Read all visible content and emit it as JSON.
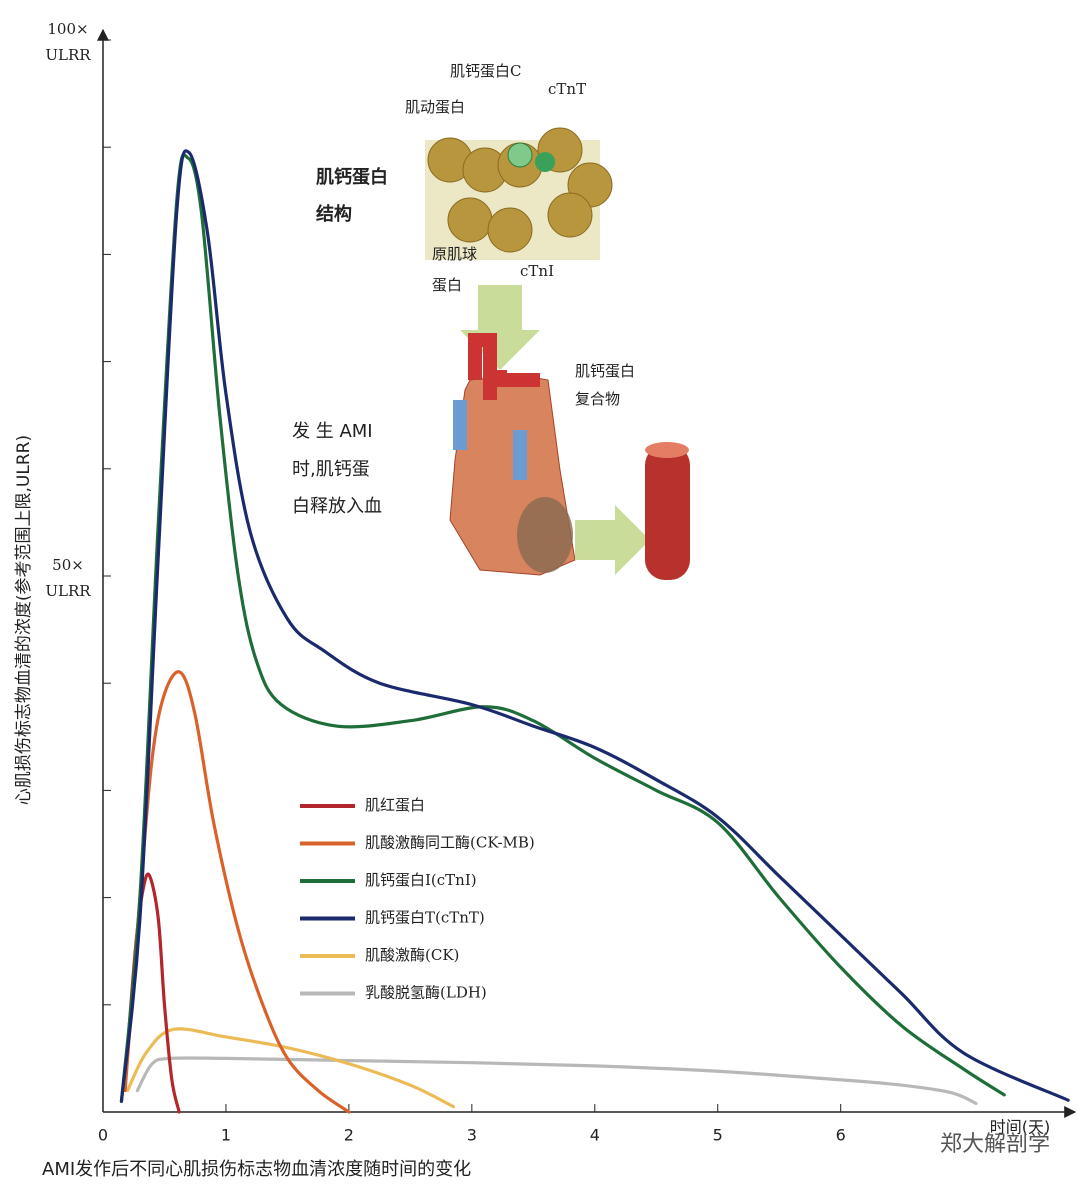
{
  "chart_data": {
    "type": "line",
    "title": "AMI发作后不同心肌损伤标志物血清浓度随时间的变化",
    "y_label": "心肌损伤标志物血清的浓度(参考范围上限,ULRR)",
    "x_label": "时间(天)",
    "xlim": [
      0,
      7.8
    ],
    "ylim": [
      0,
      100
    ],
    "xticks": [
      0,
      1,
      2,
      3,
      4,
      5,
      6
    ],
    "yticks": [
      {
        "value": 50,
        "label": "50× ULRR"
      },
      {
        "value": 100,
        "label": "100× ULRR"
      }
    ],
    "y_minor_ticks": [
      10,
      20,
      30,
      40,
      60,
      70,
      80,
      90
    ],
    "legend": "center",
    "series": [
      {
        "name": "肌红蛋白",
        "color": "#b3262b",
        "x": [
          0.2,
          0.27,
          0.33,
          0.38,
          0.45,
          0.5,
          0.56,
          0.62
        ],
        "values": [
          6,
          16,
          21,
          22,
          18,
          10,
          3,
          0
        ]
      },
      {
        "name": "肌酸激酶同工酶(CK-MB)",
        "color": "#d9622b",
        "x": [
          0.18,
          0.3,
          0.4,
          0.5,
          0.63,
          0.75,
          0.9,
          1.1,
          1.3,
          1.5,
          1.75,
          2.0
        ],
        "values": [
          2,
          20,
          33,
          39,
          41,
          37,
          27,
          17,
          10,
          5,
          2,
          0
        ]
      },
      {
        "name": "肌钙蛋白I(cTnI)",
        "color": "#1f6e3a",
        "x": [
          0.15,
          0.3,
          0.45,
          0.6,
          0.69,
          0.8,
          0.95,
          1.1,
          1.25,
          1.45,
          1.9,
          2.5,
          3.1,
          3.5,
          4,
          4.5,
          5,
          5.5,
          6,
          6.5,
          7,
          7.33
        ],
        "values": [
          1,
          20,
          55,
          85,
          89,
          84,
          65,
          50,
          42,
          38,
          36,
          36.5,
          37.8,
          36.5,
          33,
          30,
          27,
          20,
          13.5,
          8,
          4,
          1.6
        ]
      },
      {
        "name": "肌钙蛋白T(cTnT)",
        "color": "#1a2a6c",
        "x": [
          0.15,
          0.3,
          0.45,
          0.6,
          0.7,
          0.85,
          1.0,
          1.2,
          1.5,
          1.8,
          2.25,
          3,
          3.5,
          4,
          4.5,
          5,
          5.5,
          6,
          6.5,
          7,
          7.85
        ],
        "values": [
          1,
          18,
          52,
          84,
          89.5,
          82,
          67,
          54,
          46,
          43,
          40,
          38,
          36,
          34,
          31,
          27.5,
          22,
          16.5,
          11,
          5.5,
          1.1
        ]
      },
      {
        "name": "肌酸激酶(CK)",
        "color": "#eabb57",
        "x": [
          0.2,
          0.35,
          0.57,
          1,
          1.5,
          2,
          2.5,
          2.85
        ],
        "values": [
          2,
          5.5,
          7.7,
          7,
          6,
          4.5,
          2.5,
          0.5
        ]
      },
      {
        "name": "乳酸脱氢酶(LDH)",
        "color": "#b8b8b8",
        "x": [
          0.28,
          0.4,
          0.55,
          1,
          2,
          3,
          4,
          5,
          6,
          6.5,
          6.9,
          7.1
        ],
        "values": [
          2,
          4.5,
          5,
          5,
          4.8,
          4.6,
          4.3,
          3.8,
          3,
          2.5,
          1.8,
          0.8
        ]
      }
    ]
  },
  "illustration": {
    "structure_labels": [
      "肌钙蛋白C",
      "cTnT",
      "肌动蛋白",
      "原肌球",
      "蛋白",
      "cTnI"
    ],
    "structure_title": [
      "肌钙蛋白",
      "结构"
    ],
    "complex_label": [
      "肌钙蛋白",
      "复合物"
    ],
    "release_text": [
      "发 生 AMI",
      "时,肌钙蛋",
      "白释放入血"
    ]
  },
  "watermark": "郑大解剖学"
}
